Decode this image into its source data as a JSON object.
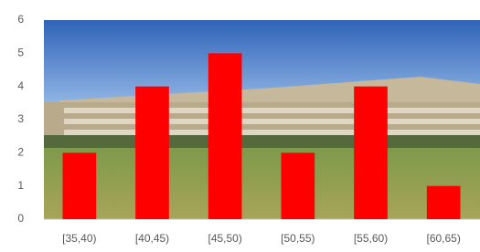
{
  "chart_data": {
    "type": "bar",
    "categories": [
      "[35,40)",
      "[40,45)",
      "[45,50)",
      "[50,55)",
      "[55,60)",
      "[60,65)"
    ],
    "values": [
      2,
      4,
      5,
      2,
      4,
      1
    ],
    "color": "#ff0000",
    "ylim": [
      0,
      6
    ],
    "yticks": [
      0,
      1,
      2,
      3,
      4,
      5,
      6
    ],
    "grid": false
  }
}
